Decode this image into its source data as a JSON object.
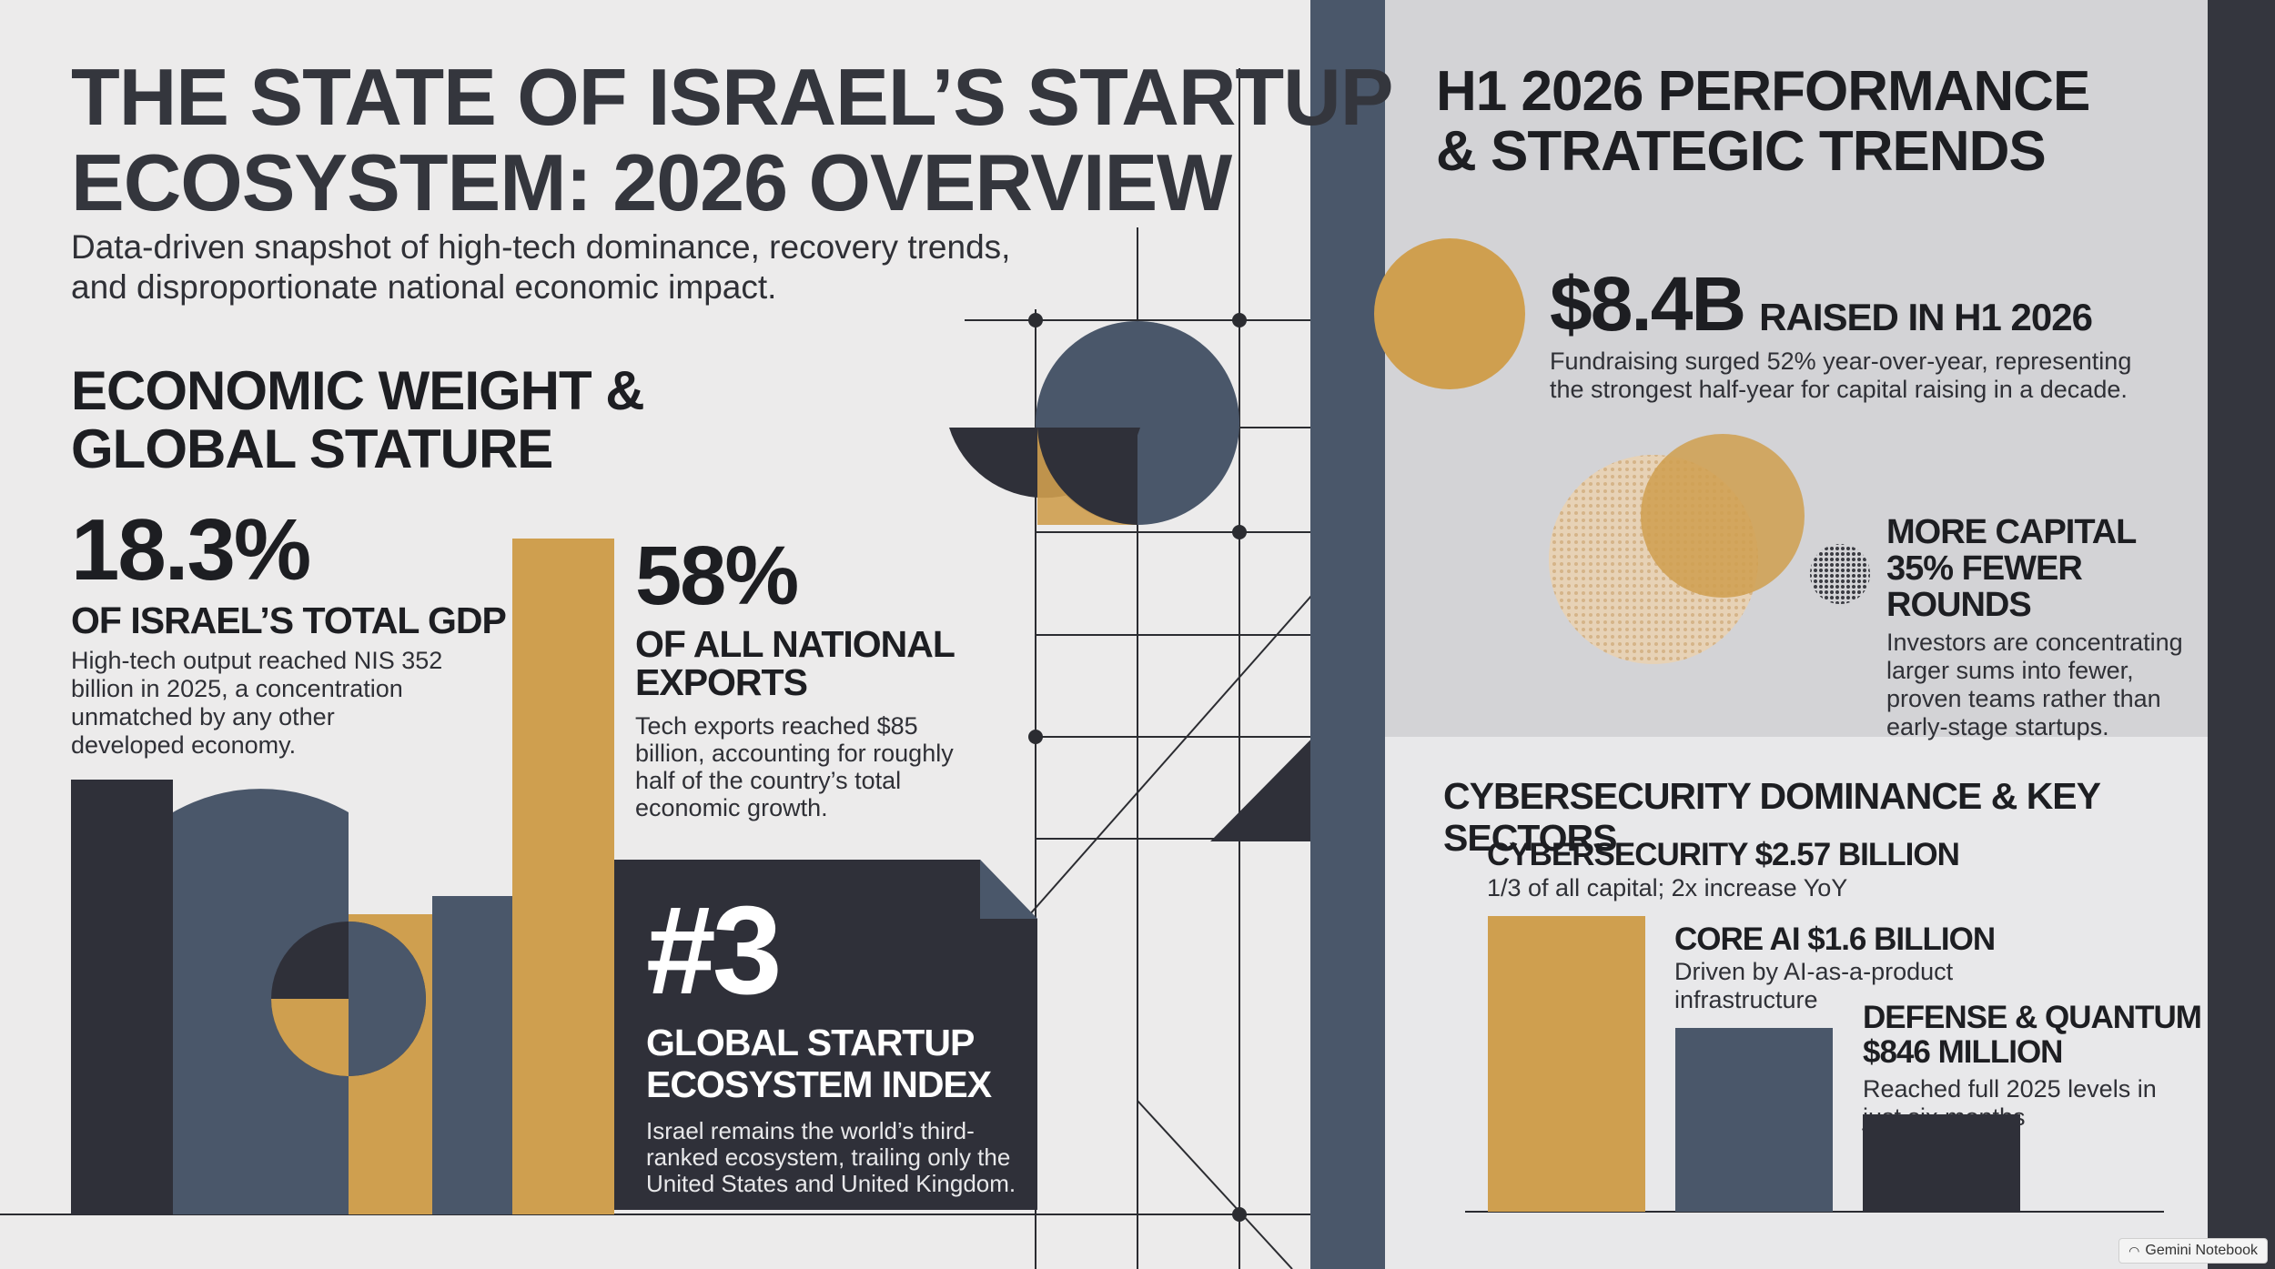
{
  "header": {
    "title_line1": "THE STATE OF ISRAEL’S STARTUP",
    "title_line2": "ECOSYSTEM: 2026 OVERVIEW",
    "subtitle_line1": "Data-driven snapshot of high-tech dominance, recovery trends,",
    "subtitle_line2": "and disproportionate national economic impact."
  },
  "economic": {
    "heading_line1": "ECONOMIC WEIGHT &",
    "heading_line2": "GLOBAL STATURE",
    "gdp": {
      "value": "18.3%",
      "label": "OF ISRAEL’S TOTAL GDP",
      "desc_lines": [
        "High-tech output reached NIS 352",
        "billion in 2025, a concentration",
        "unmatched by any other",
        "developed economy."
      ]
    },
    "exports": {
      "value": "58%",
      "label_line1": "OF ALL NATIONAL",
      "label_line2": "EXPORTS",
      "desc_lines": [
        "Tech exports reached $85",
        "billion, accounting for roughly",
        "half of the country’s total",
        "economic growth."
      ]
    },
    "rank": {
      "value": "#3",
      "label_line1": "GLOBAL STARTUP",
      "label_line2": "ECOSYSTEM INDEX",
      "desc_lines": [
        "Israel remains the world’s third-",
        "ranked ecosystem, trailing only the",
        "United States and United Kingdom."
      ]
    }
  },
  "performance": {
    "heading_line1": "H1 2026 PERFORMANCE",
    "heading_line2": "& STRATEGIC TRENDS",
    "raised": {
      "value": "$8.4B",
      "label": "RAISED IN H1 2026",
      "desc_lines": [
        "Fundraising surged 52% year-over-year, representing",
        "the strongest half-year for capital raising in a decade."
      ]
    },
    "rounds": {
      "label_line1": "MORE CAPITAL",
      "label_line2": "35% FEWER ROUNDS",
      "desc_lines": [
        "Investors are concentrating",
        "larger sums into fewer,",
        "proven teams rather than",
        "early-stage startups."
      ]
    }
  },
  "sectors": {
    "heading": "CYBERSECURITY DOMINANCE & KEY SECTORS",
    "items": [
      {
        "title": "CYBERSECURITY $2.57 BILLION",
        "desc_lines": [
          "1/3 of all capital; 2x increase YoY"
        ],
        "value_billion": 2.57,
        "color": "#cf9f4f"
      },
      {
        "title": "CORE AI $1.6 BILLION",
        "desc_lines": [
          "Driven by AI-as-a-product",
          "infrastructure"
        ],
        "value_billion": 1.6,
        "color": "#4a576a"
      },
      {
        "title_lines": [
          "DEFENSE & QUANTUM",
          "$846 MILLION"
        ],
        "desc_lines": [
          "Reached full 2025 levels in",
          "just six months"
        ],
        "value_billion": 0.846,
        "color": "#2f3039"
      }
    ]
  },
  "badge": {
    "label": "Gemini Notebook"
  },
  "colors": {
    "gold": "#cf9f4f",
    "slate": "#4a576a",
    "dark": "#2f3039",
    "background": "#ecebeb"
  }
}
